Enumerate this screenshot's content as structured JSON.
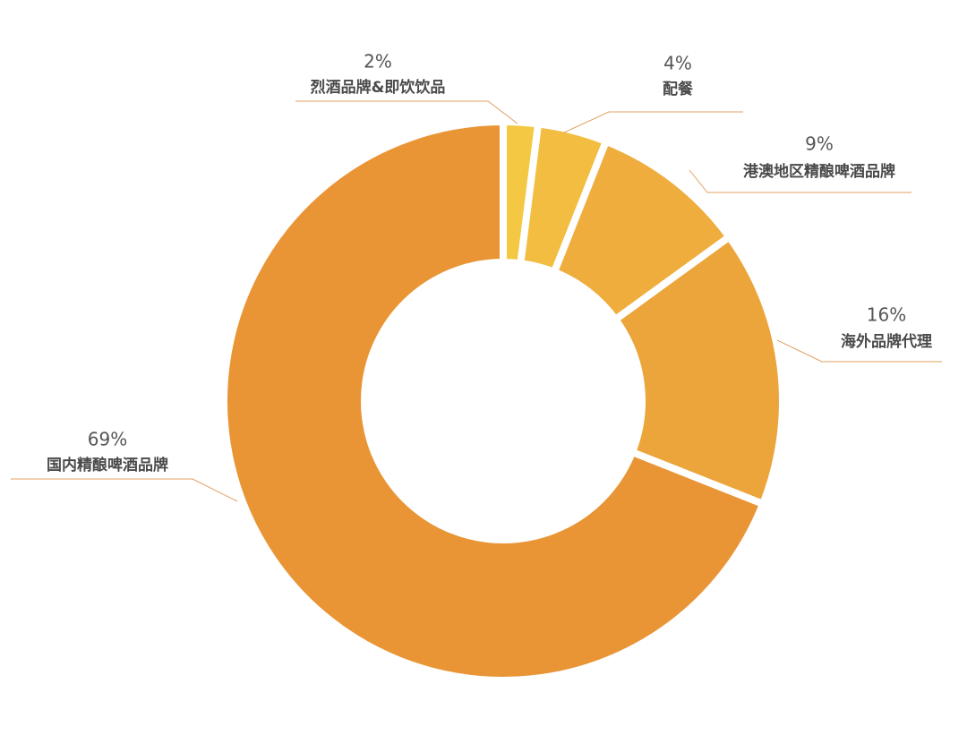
{
  "chart_data": {
    "type": "donut",
    "categories": [
      "烈酒品牌&即饮饮品",
      "配餐",
      "港澳地区精酿啤酒品牌",
      "海外品牌代理",
      "国内精酿啤酒品牌"
    ],
    "values": [
      2,
      4,
      9,
      16,
      69
    ],
    "value_labels": [
      "2%",
      "4%",
      "9%",
      "16%",
      "69%"
    ],
    "colors": [
      "#f4c843",
      "#f2bd41",
      "#efad3d",
      "#eca53b",
      "#e99536"
    ]
  }
}
